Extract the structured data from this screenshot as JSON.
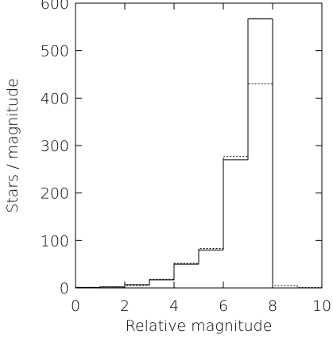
{
  "chart_data": {
    "type": "histogram",
    "xlabel": "Relative magnitude",
    "ylabel": "Stars / magnitude",
    "bins": [
      0,
      1,
      2,
      3,
      4,
      5,
      6,
      7,
      8,
      9,
      10
    ],
    "series": [
      {
        "color": "#000000",
        "dash": "solid",
        "values": [
          1,
          2,
          7,
          17,
          50,
          80,
          270,
          567,
          0,
          0
        ]
      },
      {
        "color": "#000000",
        "dash": "dotted",
        "values": [
          1,
          2,
          5,
          18,
          52,
          83,
          277,
          430,
          5,
          1
        ]
      }
    ],
    "xlim": [
      0,
      10
    ],
    "xticks": [
      0,
      2,
      4,
      6,
      8,
      10
    ],
    "ylim": [
      0,
      600
    ],
    "yticks": [
      0,
      100,
      200,
      300,
      400,
      500,
      600
    ]
  }
}
